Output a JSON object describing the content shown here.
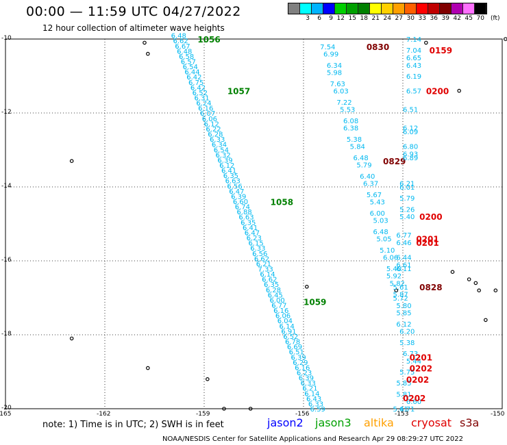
{
  "header": {
    "title": "00:00 — 11:59 UTC 04/27/2022",
    "subtitle": "12 hour collection of altimeter wave heights"
  },
  "colorbar": {
    "unit": "(ft)",
    "bins": [
      {
        "label": "",
        "color": "#808080"
      },
      {
        "label": "3",
        "color": "#00ffff"
      },
      {
        "label": "6",
        "color": "#00b4ff"
      },
      {
        "label": "9",
        "color": "#0000ff"
      },
      {
        "label": "12",
        "color": "#00d000"
      },
      {
        "label": "15",
        "color": "#00a000"
      },
      {
        "label": "18",
        "color": "#008000"
      },
      {
        "label": "21",
        "color": "#ffff00"
      },
      {
        "label": "24",
        "color": "#ffd000"
      },
      {
        "label": "27",
        "color": "#ffa000"
      },
      {
        "label": "30",
        "color": "#ff6000"
      },
      {
        "label": "33",
        "color": "#ff0000"
      },
      {
        "label": "36",
        "color": "#c00000"
      },
      {
        "label": "39",
        "color": "#800000"
      },
      {
        "label": "42",
        "color": "#b000b0"
      },
      {
        "label": "45",
        "color": "#ff70ff"
      },
      {
        "label": "70",
        "color": "#000000"
      }
    ]
  },
  "map": {
    "lat_ticks": [
      "-10",
      "-12",
      "-14",
      "-16",
      "-18",
      "-20"
    ],
    "lon_ticks": [
      "-165",
      "-162",
      "-159",
      "-156",
      "-153",
      "-150"
    ],
    "lon_range": [
      -165,
      -150
    ],
    "lat_range": [
      -10,
      -20
    ],
    "swh_color": "#00b8f0",
    "tracks": [
      {
        "name": "jason3",
        "time_color": "#008000",
        "times": [
          {
            "t": "1056",
            "lon": -159.2,
            "lat": -10.0
          },
          {
            "t": "1057",
            "lon": -158.3,
            "lat": -11.4
          },
          {
            "t": "1058",
            "lon": -157.0,
            "lat": -14.4
          },
          {
            "t": "1059",
            "lon": -156.0,
            "lat": -17.1
          }
        ],
        "swh_start": [
          -160.0,
          -9.9
        ],
        "swh_end": [
          -155.8,
          -20.0
        ],
        "swh": [
          "6.48",
          "6.62",
          "6.67",
          "6.48",
          "6.58",
          "6.57",
          "6.54",
          "6.44",
          "6.42",
          "6.75",
          "6.42",
          "6.52",
          "6.31",
          "6.24",
          "6.16",
          "6.07",
          "6.06",
          "6.12",
          "6.22",
          "6.28",
          "6.33",
          "6.34",
          "6.54",
          "6.32",
          "6.39",
          "6.12",
          "6.41",
          "6.35",
          "6.63",
          "6.56",
          "6.47",
          "6.39",
          "6.60",
          "6.74",
          "6.88",
          "6.63",
          "6.35",
          "6.41",
          "6.47",
          "6.23",
          "6.15",
          "6.33",
          "6.56",
          "6.62",
          "6.21",
          "7.33",
          "6.14",
          "6.62",
          "6.35",
          "6.28",
          "6.45",
          "6.00",
          "6.77",
          "6.16",
          "6.06",
          "6.04",
          "6.14",
          "6.91",
          "6.52",
          "6.78",
          "6.69",
          "6.51",
          "6.39",
          "6.29",
          "6.16",
          "6.23",
          "6.39",
          "6.33",
          "6.21",
          "6.14",
          "6.43",
          "6.33",
          "6.59"
        ]
      },
      {
        "name": "altika",
        "time_color": "#800000",
        "times": [
          {
            "t": "0830",
            "lon": -154.1,
            "lat": -10.2
          },
          {
            "t": "0829",
            "lon": -153.6,
            "lat": -13.3
          },
          {
            "t": "0828",
            "lon": -152.5,
            "lat": -16.7
          }
        ],
        "swh": [
          {
            "v": "7.54",
            "lon": -155.5,
            "lat": -10.2
          },
          {
            "v": "6.99",
            "lon": -155.4,
            "lat": -10.4
          },
          {
            "v": "6.34",
            "lon": -155.3,
            "lat": -10.7
          },
          {
            "v": "5.98",
            "lon": -155.3,
            "lat": -10.9
          },
          {
            "v": "7.63",
            "lon": -155.2,
            "lat": -11.2
          },
          {
            "v": "6.03",
            "lon": -155.1,
            "lat": -11.4
          },
          {
            "v": "7.22",
            "lon": -155.0,
            "lat": -11.7
          },
          {
            "v": "5.53",
            "lon": -154.9,
            "lat": -11.9
          },
          {
            "v": "6.08",
            "lon": -154.8,
            "lat": -12.2
          },
          {
            "v": "6.38",
            "lon": -154.8,
            "lat": -12.4
          },
          {
            "v": "5.38",
            "lon": -154.7,
            "lat": -12.7
          },
          {
            "v": "5.84",
            "lon": -154.6,
            "lat": -12.9
          },
          {
            "v": "6.48",
            "lon": -154.5,
            "lat": -13.2
          },
          {
            "v": "5.79",
            "lon": -154.4,
            "lat": -13.4
          },
          {
            "v": "6.40",
            "lon": -154.3,
            "lat": -13.7
          },
          {
            "v": "6.37",
            "lon": -154.2,
            "lat": -13.9
          },
          {
            "v": "5.67",
            "lon": -154.1,
            "lat": -14.2
          },
          {
            "v": "5.43",
            "lon": -154.0,
            "lat": -14.4
          },
          {
            "v": "6.00",
            "lon": -154.0,
            "lat": -14.7
          },
          {
            "v": "5.03",
            "lon": -153.9,
            "lat": -14.9
          },
          {
            "v": "6.48",
            "lon": -153.9,
            "lat": -15.2
          },
          {
            "v": "5.05",
            "lon": -153.8,
            "lat": -15.4
          },
          {
            "v": "5.10",
            "lon": -153.7,
            "lat": -15.7
          },
          {
            "v": "6.06",
            "lon": -153.6,
            "lat": -15.9
          },
          {
            "v": "5.40",
            "lon": -153.5,
            "lat": -16.2
          },
          {
            "v": "5.92",
            "lon": -153.5,
            "lat": -16.4
          },
          {
            "v": "5.82",
            "lon": -153.4,
            "lat": -16.6
          },
          {
            "v": "5.87",
            "lon": -153.3,
            "lat": -16.9
          },
          {
            "v": "5.80",
            "lon": -153.2,
            "lat": -17.2
          },
          {
            "v": "5.85",
            "lon": -153.2,
            "lat": -17.4
          },
          {
            "v": "6.12",
            "lon": -153.2,
            "lat": -17.7
          },
          {
            "v": "6.20",
            "lon": -153.1,
            "lat": -17.9
          },
          {
            "v": "5.38",
            "lon": -153.1,
            "lat": -18.2
          },
          {
            "v": "6.73",
            "lon": -153.0,
            "lat": -18.5
          },
          {
            "v": "5.44",
            "lon": -152.9,
            "lat": -18.7
          },
          {
            "v": "5.75",
            "lon": -153.1,
            "lat": -19.0
          },
          {
            "v": "5.85",
            "lon": -153.2,
            "lat": -19.3
          },
          {
            "v": "5.81",
            "lon": -153.2,
            "lat": -19.6
          },
          {
            "v": "6.60",
            "lon": -152.9,
            "lat": -19.8
          },
          {
            "v": "5.41",
            "lon": -153.3,
            "lat": -20.0
          }
        ]
      },
      {
        "name": "cryosat",
        "time_color": "#e00000",
        "times": [
          {
            "t": "0159",
            "lon": -152.2,
            "lat": -10.3
          },
          {
            "t": "0200",
            "lon": -152.3,
            "lat": -11.4
          },
          {
            "t": "0200",
            "lon": -152.5,
            "lat": -14.8
          },
          {
            "t": "0201",
            "lon": -152.6,
            "lat": -15.4
          },
          {
            "t": "0201",
            "lon": -152.6,
            "lat": -15.5
          },
          {
            "t": "0201",
            "lon": -152.8,
            "lat": -18.6
          },
          {
            "t": "0202",
            "lon": -152.8,
            "lat": -18.9
          },
          {
            "t": "0202",
            "lon": -152.9,
            "lat": -19.2
          },
          {
            "t": "0202",
            "lon": -153.0,
            "lat": -19.7
          }
        ],
        "swh": [
          {
            "v": "7.14",
            "lon": -152.9,
            "lat": -10.0
          },
          {
            "v": "7.04",
            "lon": -152.9,
            "lat": -10.3
          },
          {
            "v": "6.65",
            "lon": -152.9,
            "lat": -10.5
          },
          {
            "v": "6.43",
            "lon": -152.9,
            "lat": -10.7
          },
          {
            "v": "6.19",
            "lon": -152.9,
            "lat": -11.0
          },
          {
            "v": "6.57",
            "lon": -152.9,
            "lat": -11.4
          },
          {
            "v": "6.51",
            "lon": -153.0,
            "lat": -11.9
          },
          {
            "v": "6.12",
            "lon": -153.0,
            "lat": -12.4
          },
          {
            "v": "6.09",
            "lon": -153.0,
            "lat": -12.5
          },
          {
            "v": "6.80",
            "lon": -153.0,
            "lat": -12.9
          },
          {
            "v": "6.93",
            "lon": -153.0,
            "lat": -13.1
          },
          {
            "v": "6.89",
            "lon": -153.0,
            "lat": -13.2
          },
          {
            "v": "6.21",
            "lon": -153.1,
            "lat": -13.9
          },
          {
            "v": "6.01",
            "lon": -153.1,
            "lat": -14.0
          },
          {
            "v": "5.79",
            "lon": -153.1,
            "lat": -14.3
          },
          {
            "v": "5.26",
            "lon": -153.1,
            "lat": -14.6
          },
          {
            "v": "5.40",
            "lon": -153.1,
            "lat": -14.8
          },
          {
            "v": "6.77",
            "lon": -153.2,
            "lat": -15.3
          },
          {
            "v": "6.46",
            "lon": -153.2,
            "lat": -15.5
          },
          {
            "v": "6.44",
            "lon": -153.2,
            "lat": -15.9
          },
          {
            "v": "6.61",
            "lon": -153.2,
            "lat": -16.1
          },
          {
            "v": "6.11",
            "lon": -153.2,
            "lat": -16.2
          },
          {
            "v": "5.61",
            "lon": -153.3,
            "lat": -16.7
          },
          {
            "v": "5.72",
            "lon": -153.3,
            "lat": -17.0
          },
          {
            "v": "6.71",
            "lon": -153.1,
            "lat": -20.0
          }
        ]
      }
    ],
    "islands": [
      {
        "lon": -160.8,
        "lat": -10.1
      },
      {
        "lon": -160.7,
        "lat": -10.4
      },
      {
        "lon": -149.9,
        "lat": -10.0
      },
      {
        "lon": -152.3,
        "lat": -10.1
      },
      {
        "lon": -151.3,
        "lat": -11.4
      },
      {
        "lon": -163.0,
        "lat": -13.3
      },
      {
        "lon": -151.5,
        "lat": -16.3
      },
      {
        "lon": -151.0,
        "lat": -16.5
      },
      {
        "lon": -150.8,
        "lat": -16.6
      },
      {
        "lon": -150.7,
        "lat": -16.8
      },
      {
        "lon": -150.2,
        "lat": -16.8
      },
      {
        "lon": -150.5,
        "lat": -17.6
      },
      {
        "lon": -163.0,
        "lat": -18.1
      },
      {
        "lon": -160.7,
        "lat": -18.9
      },
      {
        "lon": -158.9,
        "lat": -19.2
      },
      {
        "lon": -158.4,
        "lat": -20.0
      },
      {
        "lon": -157.6,
        "lat": -20.0
      },
      {
        "lon": -155.9,
        "lat": -16.7
      },
      {
        "lon": -153.2,
        "lat": -16.8
      }
    ]
  },
  "legend": {
    "note": "note: 1) Time is in UTC; 2) SWH is in feet",
    "satellites": [
      {
        "name": "jason2",
        "color": "#0000ff"
      },
      {
        "name": "jason3",
        "color": "#00a000"
      },
      {
        "name": "altika",
        "color": "#ffa000"
      },
      {
        "name": "cryosat",
        "color": "#e00000"
      },
      {
        "name": "s3a",
        "color": "#800000"
      }
    ]
  },
  "footer": {
    "credit": "NOAA/NESDIS Center for Satellite Applications and Research   Apr 29 08:29:27 UTC 2022"
  }
}
